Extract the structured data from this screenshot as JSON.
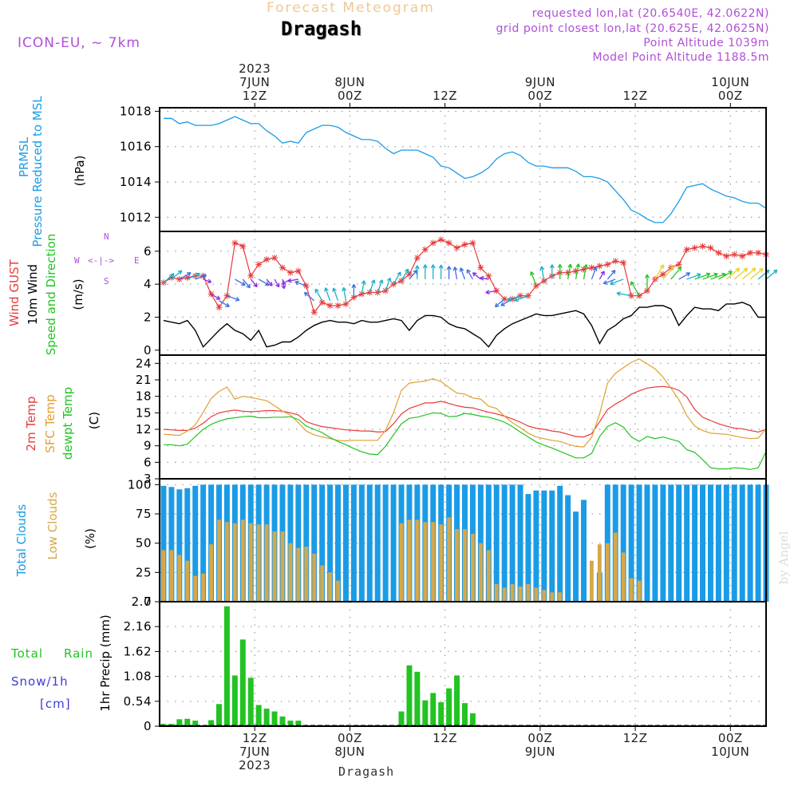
{
  "header": {
    "top_title": "Forecast Meteogram",
    "location": "Dragash",
    "model": "ICON-EU, ~ 7km",
    "requested": "requested lon,lat (20.6540E, 42.0622N)",
    "grid_point": "grid point closest lon,lat (20.625E, 42.0625N)",
    "point_altitude": "Point Altitude 1039m",
    "model_altitude": "Model Point Altitude 1188.5m",
    "watermark": "by Angel",
    "bottom_location": "Dragash"
  },
  "time_axis": {
    "top": [
      {
        "x": 12,
        "lines": [
          "2023",
          "7JUN",
          "12Z"
        ]
      },
      {
        "x": 24,
        "lines": [
          "8JUN",
          "00Z"
        ]
      },
      {
        "x": 36,
        "lines": [
          "12Z"
        ]
      },
      {
        "x": 48,
        "lines": [
          "9JUN",
          "00Z"
        ]
      },
      {
        "x": 60,
        "lines": [
          "12Z"
        ]
      },
      {
        "x": 72,
        "lines": [
          "10JUN",
          "00Z"
        ]
      }
    ],
    "bottom": [
      {
        "x": 12,
        "lines": [
          "12Z",
          "7JUN",
          "2023"
        ]
      },
      {
        "x": 24,
        "lines": [
          "00Z",
          "8JUN"
        ]
      },
      {
        "x": 36,
        "lines": [
          "12Z"
        ]
      },
      {
        "x": 48,
        "lines": [
          "00Z",
          "9JUN"
        ]
      },
      {
        "x": 60,
        "lines": [
          "12Z"
        ]
      },
      {
        "x": 72,
        "lines": [
          "00Z",
          "10JUN"
        ]
      }
    ]
  },
  "panel_labels": {
    "pressure": {
      "l1": "PRMSL",
      "l2": "Pressure Reduced to MSL",
      "unit": "(hPa)"
    },
    "wind": {
      "l1": "Wind GUST",
      "l2": "10m Wind",
      "l3": "Speed and Direction",
      "unit": "(m/s)",
      "compass": {
        "n": "N",
        "s": "S",
        "w": "W",
        "e": "E"
      }
    },
    "temp": {
      "l1": "2m Temp",
      "l2": "SFC Temp",
      "l3": "dewpt Temp",
      "unit": "(C)"
    },
    "clouds": {
      "l1": "Total Clouds",
      "l2": "Low Clouds",
      "unit": "(%)"
    },
    "precip": {
      "l1": "Total",
      "l1b": "Rain",
      "l2": "Snow/1h",
      "l3": "[cm]",
      "unit": "1hr Precip (mm)"
    }
  },
  "colors": {
    "pressure": "#1a9be6",
    "gust": "#e63b3b",
    "wind": "#000000",
    "t2m": "#e63b3b",
    "tsfc": "#e0a030",
    "dewpt": "#22c322",
    "total_clouds": "#1a9be6",
    "low_clouds": "#d4a84a",
    "rain": "#22c322",
    "snow": "#3b3bd9",
    "meta": "#b04fd8",
    "title_faint": "#f0c890"
  },
  "chart_data": [
    {
      "type": "line",
      "title": "PRMSL Pressure Reduced to MSL",
      "ylabel": "(hPa)",
      "ylim": [
        1011.2,
        1018.2
      ],
      "yticks": [
        1012,
        1014,
        1016,
        1018
      ],
      "xlim": [
        0,
        76.5
      ],
      "x_start": 0.5,
      "x_step": 1,
      "series": [
        {
          "name": "PRMSL",
          "values": [
            1017.6,
            1017.6,
            1017.3,
            1017.4,
            1017.2,
            1017.2,
            1017.2,
            1017.3,
            1017.5,
            1017.7,
            1017.5,
            1017.3,
            1017.3,
            1016.9,
            1016.6,
            1016.2,
            1016.3,
            1016.2,
            1016.8,
            1017.0,
            1017.2,
            1017.2,
            1017.1,
            1016.8,
            1016.6,
            1016.4,
            1016.4,
            1016.3,
            1015.9,
            1015.6,
            1015.8,
            1015.8,
            1015.8,
            1015.6,
            1015.4,
            1014.9,
            1014.8,
            1014.5,
            1014.2,
            1014.3,
            1014.5,
            1014.8,
            1015.3,
            1015.6,
            1015.7,
            1015.5,
            1015.1,
            1014.9,
            1014.9,
            1014.8,
            1014.8,
            1014.8,
            1014.6,
            1014.3,
            1014.3,
            1014.2,
            1014.0,
            1013.5,
            1013.0,
            1012.4,
            1012.2,
            1011.9,
            1011.7,
            1011.7,
            1012.2,
            1012.9,
            1013.7,
            1013.8,
            1013.9,
            1013.6,
            1013.4,
            1013.2,
            1013.1,
            1012.9,
            1012.8,
            1012.8,
            1012.5
          ]
        }
      ]
    },
    {
      "type": "line",
      "title": "Wind GUST / 10m Wind Speed and Direction",
      "ylabel": "(m/s)",
      "ylim": [
        -0.3,
        7.2
      ],
      "yticks": [
        0,
        2,
        4,
        6
      ],
      "xlim": [
        0,
        76.5
      ],
      "x_start": 0.5,
      "x_step": 1,
      "series": [
        {
          "name": "Wind GUST",
          "values": [
            4.1,
            4.4,
            4.3,
            4.4,
            4.5,
            4.5,
            3.4,
            2.6,
            3.3,
            6.5,
            6.3,
            4.5,
            5.2,
            5.5,
            5.6,
            5.0,
            4.7,
            4.8,
            3.9,
            2.3,
            2.9,
            2.7,
            2.7,
            2.8,
            3.2,
            3.4,
            3.5,
            3.5,
            3.6,
            4.0,
            4.2,
            4.6,
            5.6,
            6.1,
            6.5,
            6.7,
            6.5,
            6.2,
            6.4,
            6.5,
            5.0,
            4.5,
            3.6,
            3.1,
            3.1,
            3.3,
            3.3,
            3.9,
            4.2,
            4.5,
            4.7,
            4.7,
            4.8,
            4.9,
            5.0,
            5.1,
            5.2,
            5.4,
            5.3,
            3.3,
            3.3,
            3.6,
            4.3,
            4.6,
            5.0,
            5.2,
            6.1,
            6.2,
            6.3,
            6.2,
            5.9,
            5.7,
            5.8,
            5.7,
            5.9,
            5.9,
            5.8
          ]
        },
        {
          "name": "10m Wind",
          "values": [
            1.8,
            1.7,
            1.6,
            1.8,
            1.2,
            0.2,
            0.7,
            1.2,
            1.6,
            1.2,
            1.0,
            0.6,
            1.2,
            0.2,
            0.3,
            0.5,
            0.5,
            0.8,
            1.2,
            1.5,
            1.7,
            1.8,
            1.7,
            1.7,
            1.6,
            1.8,
            1.7,
            1.7,
            1.8,
            1.9,
            1.8,
            1.2,
            1.8,
            2.1,
            2.1,
            2.0,
            1.6,
            1.4,
            1.3,
            1.0,
            0.7,
            0.2,
            0.9,
            1.3,
            1.6,
            1.8,
            2.0,
            2.2,
            2.1,
            2.1,
            2.2,
            2.3,
            2.4,
            2.2,
            1.5,
            0.4,
            1.2,
            1.5,
            1.9,
            2.1,
            2.6,
            2.6,
            2.7,
            2.7,
            2.5,
            1.5,
            2.1,
            2.6,
            2.5,
            2.5,
            2.4,
            2.8,
            2.8,
            2.9,
            2.7,
            2.0,
            2.0
          ]
        },
        {
          "name": "Wind Direction",
          "values": [
            230,
            230,
            240,
            245,
            250,
            290,
            300,
            300,
            290,
            300,
            320,
            320,
            300,
            320,
            330,
            350,
            60,
            80,
            110,
            130,
            150,
            160,
            160,
            170,
            180,
            190,
            200,
            200,
            200,
            210,
            210,
            220,
            180,
            180,
            180,
            180,
            180,
            170,
            160,
            150,
            130,
            100,
            80,
            50,
            60,
            70,
            70,
            160,
            170,
            180,
            180,
            190,
            190,
            190,
            200,
            210,
            220,
            70,
            70,
            100,
            150,
            180,
            210,
            220,
            220,
            240,
            250,
            250,
            250,
            250,
            240,
            230,
            230,
            230,
            230,
            230,
            230
          ]
        }
      ]
    },
    {
      "type": "line",
      "title": "2m Temp / SFC Temp / dewpt Temp",
      "ylabel": "(C)",
      "ylim": [
        3,
        25.5
      ],
      "yticks": [
        3,
        6,
        9,
        12,
        15,
        18,
        21,
        24
      ],
      "xlim": [
        0,
        76.5
      ],
      "x_start": 0.5,
      "x_step": 1,
      "series": [
        {
          "name": "2m Temp",
          "values": [
            12.0,
            11.9,
            11.8,
            11.8,
            12.2,
            13.1,
            14.3,
            15.0,
            15.3,
            15.5,
            15.3,
            15.2,
            15.3,
            15.4,
            15.4,
            15.3,
            15.0,
            14.6,
            13.4,
            12.9,
            12.5,
            12.3,
            12.1,
            11.9,
            11.8,
            11.7,
            11.7,
            11.5,
            11.6,
            13.0,
            14.8,
            15.8,
            16.3,
            16.8,
            16.8,
            17.1,
            16.7,
            16.3,
            16.0,
            15.9,
            15.5,
            15.1,
            14.8,
            14.4,
            13.9,
            13.3,
            12.6,
            12.2,
            12.0,
            11.7,
            11.5,
            11.1,
            10.7,
            10.6,
            11.2,
            13.4,
            15.6,
            16.6,
            17.4,
            18.4,
            19.0,
            19.5,
            19.7,
            19.8,
            19.6,
            19.1,
            17.9,
            15.6,
            14.2,
            13.6,
            13.0,
            12.6,
            12.2,
            12.1,
            11.8,
            11.5,
            12.0
          ]
        },
        {
          "name": "SFC Temp",
          "values": [
            11.1,
            11.0,
            10.9,
            11.7,
            12.8,
            15.1,
            17.6,
            18.9,
            19.7,
            17.5,
            18.0,
            17.8,
            17.5,
            17.2,
            16.3,
            15.3,
            14.6,
            13.2,
            11.7,
            11.0,
            10.6,
            10.3,
            10.0,
            9.9,
            10.0,
            10.0,
            10.0,
            10.0,
            11.8,
            15.0,
            19.1,
            20.4,
            20.6,
            20.8,
            21.2,
            20.7,
            19.6,
            18.6,
            18.4,
            17.7,
            17.5,
            16.2,
            15.8,
            14.4,
            13.2,
            12.3,
            11.3,
            10.6,
            10.3,
            10.0,
            9.8,
            9.3,
            8.9,
            8.8,
            10.5,
            14.8,
            20.4,
            22.2,
            23.2,
            24.2,
            24.8,
            23.9,
            23.0,
            21.5,
            19.5,
            17.4,
            14.5,
            12.6,
            11.8,
            11.3,
            11.2,
            11.1,
            10.8,
            10.5,
            10.3,
            10.4,
            12.1
          ]
        },
        {
          "name": "dewpt Temp",
          "values": [
            9.2,
            9.2,
            9.0,
            9.3,
            10.7,
            12.0,
            12.9,
            13.5,
            13.9,
            14.1,
            14.3,
            14.4,
            14.1,
            14.1,
            14.2,
            14.2,
            14.3,
            13.8,
            12.6,
            12.0,
            11.4,
            10.5,
            9.8,
            9.2,
            8.5,
            7.9,
            7.5,
            7.4,
            8.9,
            11.0,
            13.0,
            14.0,
            14.2,
            14.6,
            15.0,
            14.9,
            14.3,
            14.4,
            14.9,
            14.7,
            14.4,
            14.2,
            13.8,
            13.3,
            12.5,
            11.5,
            10.6,
            9.7,
            9.1,
            8.6,
            8.0,
            7.4,
            6.8,
            6.8,
            7.6,
            10.7,
            12.5,
            13.2,
            12.4,
            10.6,
            9.8,
            10.7,
            10.3,
            10.6,
            10.2,
            9.8,
            8.3,
            7.8,
            6.5,
            5.0,
            4.8,
            4.8,
            5.0,
            4.9,
            4.7,
            5.0,
            8.0
          ]
        }
      ]
    },
    {
      "type": "bar",
      "title": "Total Clouds / Low Clouds",
      "ylabel": "(%)",
      "ylim": [
        0,
        105
      ],
      "yticks": [
        0,
        25,
        50,
        75,
        100
      ],
      "xlim": [
        0,
        76.5
      ],
      "x_start": 0.5,
      "x_step": 1,
      "series": [
        {
          "name": "Total Clouds",
          "values": [
            99,
            98,
            96,
            97,
            99,
            100,
            100,
            100,
            100,
            100,
            100,
            100,
            100,
            100,
            100,
            100,
            100,
            100,
            100,
            100,
            100,
            100,
            100,
            100,
            100,
            100,
            100,
            100,
            100,
            100,
            100,
            100,
            100,
            100,
            100,
            100,
            100,
            100,
            100,
            100,
            100,
            100,
            100,
            100,
            100,
            100,
            92,
            95,
            95,
            95,
            99,
            91,
            77,
            87,
            0,
            25,
            100,
            100,
            100,
            100,
            100,
            100,
            100,
            100,
            100,
            100,
            100,
            100,
            100,
            100,
            100,
            100,
            100,
            100,
            100,
            100,
            100
          ]
        },
        {
          "name": "Low Clouds",
          "values": [
            44,
            44,
            40,
            35,
            22,
            24,
            49,
            70,
            68,
            67,
            70,
            67,
            66,
            66,
            60,
            60,
            50,
            46,
            47,
            41,
            31,
            25,
            18,
            0,
            0,
            0,
            0,
            0,
            0,
            0,
            67,
            70,
            70,
            68,
            68,
            66,
            72,
            62,
            62,
            58,
            50,
            44,
            15,
            12,
            15,
            13,
            15,
            12,
            10,
            8,
            8,
            0,
            0,
            0,
            35,
            49,
            50,
            59,
            42,
            20,
            18,
            0,
            0,
            0,
            0,
            0,
            0,
            0,
            0,
            0,
            0,
            0,
            0,
            0,
            0,
            0,
            0
          ]
        }
      ]
    },
    {
      "type": "bar",
      "title": "1hr Precip",
      "ylabel": "1hr Precip (mm)",
      "ylim": [
        0,
        2.7
      ],
      "yticks": [
        0,
        0.54,
        1.08,
        1.62,
        2.16,
        2.7
      ],
      "xlim": [
        0,
        76.5
      ],
      "x_start": 0.5,
      "x_step": 1,
      "series": [
        {
          "name": "Total Rain",
          "values": [
            0.05,
            0.05,
            0.15,
            0.16,
            0.12,
            0,
            0.13,
            0.48,
            2.6,
            1.1,
            1.88,
            1.05,
            0.46,
            0.38,
            0.32,
            0.21,
            0.12,
            0.12,
            0,
            0,
            0,
            0,
            0,
            0,
            0,
            0,
            0,
            0,
            0,
            0,
            0.32,
            1.32,
            1.18,
            0.56,
            0.72,
            0.52,
            0.82,
            1.1,
            0.5,
            0.28,
            0,
            0,
            0,
            0,
            0,
            0,
            0,
            0,
            0,
            0,
            0,
            0,
            0,
            0,
            0,
            0,
            0,
            0,
            0,
            0,
            0,
            0,
            0,
            0,
            0,
            0,
            0,
            0,
            0,
            0,
            0,
            0,
            0,
            0,
            0,
            0,
            0
          ]
        },
        {
          "name": "Snow/1h",
          "values": [
            0,
            0,
            0,
            0,
            0,
            0,
            0,
            0,
            0,
            0,
            0,
            0,
            0,
            0,
            0,
            0,
            0,
            0,
            0,
            0,
            0,
            0,
            0,
            0,
            0,
            0,
            0,
            0,
            0,
            0,
            0,
            0,
            0,
            0,
            0,
            0,
            0,
            0,
            0,
            0,
            0,
            0,
            0,
            0,
            0,
            0,
            0,
            0,
            0,
            0,
            0,
            0,
            0,
            0,
            0,
            0,
            0,
            0,
            0,
            0,
            0,
            0,
            0,
            0,
            0,
            0,
            0,
            0,
            0,
            0,
            0,
            0,
            0,
            0,
            0,
            0,
            0
          ]
        }
      ]
    }
  ]
}
